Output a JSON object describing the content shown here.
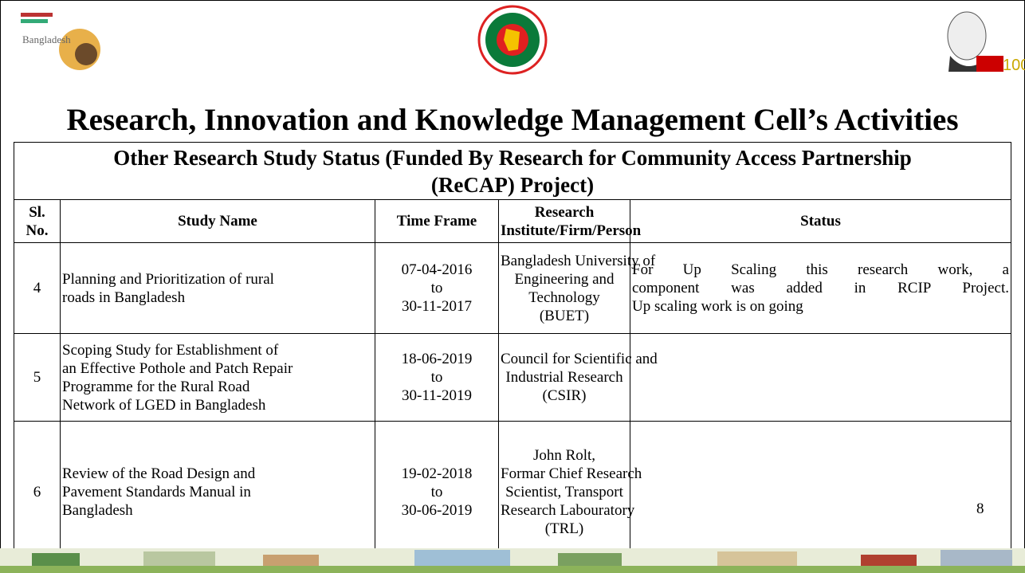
{
  "header": {
    "title": "Research, Innovation and Knowledge Management Cell’s Activities",
    "left_logo_text": "Bangladesh"
  },
  "table": {
    "caption_lines": [
      "Other Research Study Status (Funded By Research for Community Access Partnership",
      "(ReCAP) Project)"
    ],
    "columns": [
      [
        "Sl.",
        "No."
      ],
      [
        "Study Name"
      ],
      [
        "Time Frame"
      ],
      [
        "Research",
        "Institute/Firm/Person"
      ],
      [
        "Status"
      ]
    ],
    "rows": [
      [
        [
          "4"
        ],
        [
          "Planning and Prioritization of rural",
          "roads in Bangladesh"
        ],
        [
          "07-04-2016",
          "to",
          "30-11-2017"
        ],
        [
          "Bangladesh University of",
          "Engineering and",
          "Technology",
          "(BUET)"
        ],
        [
          "For Up Scaling this research work, a",
          "component was added in RCIP Project.",
          "Up scaling work is on going"
        ]
      ],
      [
        [
          "5"
        ],
        [
          "Scoping Study for Establishment of",
          "an Effective Pothole and Patch Repair",
          "Programme for the Rural Road",
          "Network of LGED in Bangladesh"
        ],
        [
          "18-06-2019",
          "to",
          "30-11-2019"
        ],
        [
          "Council for Scientific and",
          "Industrial Research",
          "(CSIR)"
        ],
        []
      ],
      [
        [
          "6"
        ],
        [
          "Review of the Road Design and",
          "Pavement Standards Manual in",
          "Bangladesh"
        ],
        [
          "19-02-2018",
          "to",
          "30-06-2019"
        ],
        [
          "John Rolt,",
          "Formar Chief Research",
          "Scientist, Transport",
          "Research Labouratory",
          "(TRL)"
        ],
        []
      ]
    ]
  },
  "page_number": "8"
}
